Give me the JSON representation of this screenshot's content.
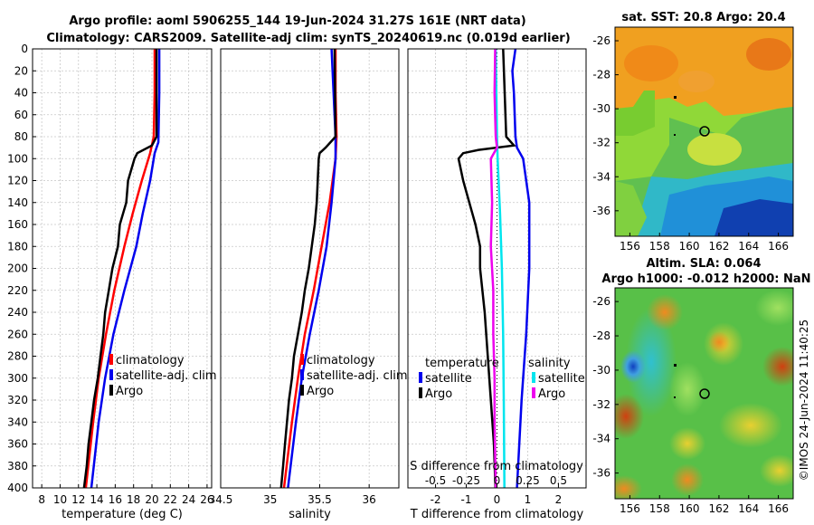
{
  "title_line1": "Argo profile: aoml 5906255_144 19-Jun-2024 31.27S 161E (NRT data)",
  "title_line2": "Climatology: CARS2009. Satellite-adj clim: synTS_20240619.nc (0.019d earlier)",
  "watermark": "©IMOS 24-Jun-2024 11:40:25",
  "colors": {
    "climatology": "#ff0000",
    "satellite": "#0000ee",
    "argo": "#000000",
    "sat_salinity": "#00e5ee",
    "argo_salinity": "#ee00ee"
  },
  "chart_data": [
    {
      "type": "line",
      "name": "temperature-profile",
      "xlabel": "temperature (deg C)",
      "xlim": [
        7,
        26.5
      ],
      "xticks": [
        "8",
        "10",
        "12",
        "14",
        "16",
        "18",
        "20",
        "22",
        "24",
        "26"
      ],
      "ylim": [
        0,
        400
      ],
      "yticks": [
        "0",
        "20",
        "40",
        "60",
        "80",
        "100",
        "120",
        "140",
        "160",
        "180",
        "200",
        "220",
        "240",
        "260",
        "280",
        "300",
        "320",
        "340",
        "360",
        "380",
        "400"
      ],
      "legend": [
        "climatology",
        "satellite-adj. clim",
        "Argo"
      ],
      "series": [
        {
          "name": "climatology",
          "depth": [
            0,
            40,
            80,
            95,
            120,
            150,
            180,
            220,
            260,
            300,
            340,
            400
          ],
          "values": [
            20.3,
            20.3,
            20.2,
            19.8,
            18.9,
            17.9,
            17.0,
            15.9,
            15.0,
            14.2,
            13.6,
            12.8
          ]
        },
        {
          "name": "satellite-adj. clim",
          "depth": [
            0,
            40,
            85,
            95,
            120,
            150,
            180,
            220,
            260,
            300,
            340,
            400
          ],
          "values": [
            20.8,
            20.8,
            20.7,
            20.3,
            19.8,
            19.0,
            18.3,
            17.0,
            15.8,
            14.9,
            14.2,
            13.4
          ]
        },
        {
          "name": "Argo",
          "depth": [
            0,
            80,
            88,
            95,
            100,
            120,
            140,
            160,
            180,
            200,
            220,
            240,
            260,
            280,
            300,
            320,
            340,
            360,
            380,
            400
          ],
          "values": [
            20.5,
            20.5,
            20.0,
            18.4,
            18.1,
            17.4,
            17.2,
            16.5,
            16.3,
            15.7,
            15.3,
            14.9,
            14.7,
            14.4,
            14.1,
            13.7,
            13.4,
            13.1,
            12.9,
            12.6
          ]
        }
      ]
    },
    {
      "type": "line",
      "name": "salinity-profile",
      "xlabel": "salinity",
      "xlim": [
        34.5,
        36.3
      ],
      "xticks": [
        "34.5",
        "35",
        "35.5",
        "36"
      ],
      "ylim": [
        0,
        400
      ],
      "legend": [
        "climatology",
        "satellite-adj. clim",
        "Argo"
      ],
      "series": [
        {
          "name": "climatology",
          "depth": [
            0,
            40,
            80,
            100,
            140,
            180,
            220,
            260,
            300,
            340,
            400
          ],
          "values": [
            35.66,
            35.66,
            35.67,
            35.66,
            35.6,
            35.52,
            35.44,
            35.35,
            35.28,
            35.22,
            35.14
          ]
        },
        {
          "name": "satellite-adj. clim",
          "depth": [
            0,
            40,
            80,
            100,
            140,
            180,
            220,
            260,
            300,
            340,
            400
          ],
          "values": [
            35.62,
            35.64,
            35.66,
            35.66,
            35.62,
            35.57,
            35.49,
            35.4,
            35.32,
            35.26,
            35.18
          ]
        },
        {
          "name": "Argo",
          "depth": [
            0,
            80,
            90,
            95,
            100,
            120,
            140,
            160,
            180,
            200,
            220,
            240,
            260,
            280,
            300,
            320,
            340,
            360,
            380,
            400
          ],
          "values": [
            35.65,
            35.66,
            35.56,
            35.5,
            35.49,
            35.48,
            35.47,
            35.45,
            35.42,
            35.39,
            35.35,
            35.32,
            35.28,
            35.24,
            35.22,
            35.19,
            35.17,
            35.15,
            35.13,
            35.11
          ]
        }
      ]
    },
    {
      "type": "line",
      "name": "difference-profile",
      "xlabel": "T difference from climatology",
      "xlabel_top": "S difference from climatology",
      "xlim": [
        -2.9,
        2.9
      ],
      "xticks": [
        "-2",
        "-1",
        "0",
        "1",
        "2"
      ],
      "xticks_top": [
        "-0.5",
        "-0.25",
        "0",
        "0.25",
        "0.5"
      ],
      "ylim": [
        0,
        400
      ],
      "legend_temperature": {
        "title": "temperature",
        "items": [
          "satellite",
          "Argo"
        ]
      },
      "legend_salinity": {
        "title": "salinity",
        "items": [
          "satellite",
          "Argo"
        ]
      },
      "series": [
        {
          "name": "temperature satellite",
          "depth": [
            0,
            20,
            40,
            80,
            90,
            100,
            140,
            200,
            260,
            320,
            400
          ],
          "values": [
            0.6,
            0.5,
            0.55,
            0.6,
            0.65,
            0.85,
            1.05,
            1.05,
            0.95,
            0.8,
            0.65
          ]
        },
        {
          "name": "temperature Argo",
          "depth": [
            0,
            80,
            88,
            92,
            95,
            100,
            120,
            140,
            160,
            180,
            200,
            240,
            280,
            320,
            360,
            400
          ],
          "values": [
            0.2,
            0.3,
            0.55,
            -0.6,
            -1.1,
            -1.25,
            -1.1,
            -0.9,
            -0.7,
            -0.55,
            -0.55,
            -0.4,
            -0.3,
            -0.2,
            -0.1,
            -0.05
          ]
        },
        {
          "name": "salinity satellite",
          "depth": [
            0,
            80,
            100,
            150,
            200,
            260,
            320,
            400
          ],
          "values": [
            -0.01,
            0.0,
            0.005,
            0.025,
            0.04,
            0.05,
            0.055,
            0.06
          ]
        },
        {
          "name": "salinity Argo",
          "depth": [
            0,
            40,
            80,
            90,
            100,
            140,
            180,
            220,
            260,
            300,
            340,
            400
          ],
          "values": [
            -0.015,
            -0.02,
            -0.01,
            0.0,
            -0.05,
            -0.04,
            -0.05,
            -0.03,
            -0.03,
            -0.02,
            -0.02,
            -0.01
          ]
        }
      ]
    },
    {
      "type": "heatmap",
      "name": "sst-map",
      "title": "sat. SST: 20.8 Argo: 20.4",
      "xticks": [
        "156",
        "158",
        "160",
        "162",
        "164",
        "166"
      ],
      "yticks": [
        "-26",
        "-28",
        "-30",
        "-32",
        "-34",
        "-36"
      ],
      "xlim": [
        155,
        167
      ],
      "ylim": [
        -37.5,
        -25.2
      ],
      "argo_position": {
        "lon": 161,
        "lat": -31.27
      }
    },
    {
      "type": "heatmap",
      "name": "sla-map",
      "title_line1": "Altim. SLA: 0.064",
      "title_line2": "Argo h1000: -0.012 h2000: NaN",
      "xticks": [
        "156",
        "158",
        "160",
        "162",
        "164",
        "166"
      ],
      "yticks": [
        "-26",
        "-28",
        "-30",
        "-32",
        "-34",
        "-36"
      ],
      "xlim": [
        155,
        167
      ],
      "ylim": [
        -37.5,
        -25.2
      ],
      "argo_position": {
        "lon": 161,
        "lat": -31.27
      }
    }
  ]
}
